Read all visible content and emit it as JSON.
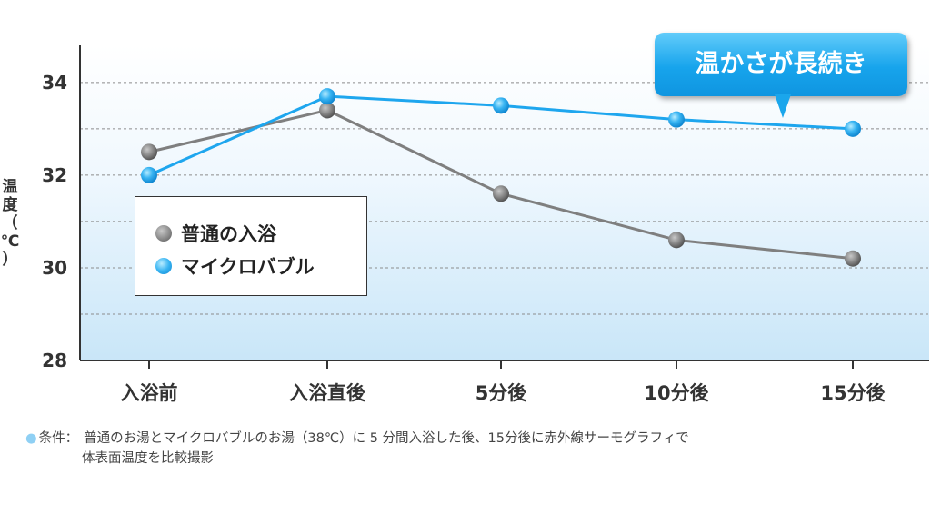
{
  "chart_data": {
    "type": "line",
    "categories": [
      "入浴前",
      "入浴直後",
      "5分後",
      "10分後",
      "15分後"
    ],
    "series": [
      {
        "name": "普通の入浴",
        "values": [
          32.5,
          33.4,
          31.6,
          30.6,
          30.2
        ],
        "color": "#7f7f7f"
      },
      {
        "name": "マイクロバブル",
        "values": [
          32.0,
          33.7,
          33.5,
          33.2,
          33.0
        ],
        "color": "#1ea6ee"
      }
    ],
    "ylabel": "温度（℃）",
    "ylim": [
      28,
      34.8
    ],
    "yticks": [
      28,
      30,
      32,
      34
    ],
    "grid": true,
    "legend_position": "center-left",
    "annotation": "温かさが長続き"
  },
  "ylabel_chars": [
    "温",
    "度",
    "（",
    "℃",
    "）"
  ],
  "note": {
    "bullet": "●",
    "label": "条件：",
    "line1": "普通のお湯とマイクロバブルのお湯（38℃）に 5 分間入浴した後、15分後に赤外線サーモグラフィで",
    "line2": "体表面温度を比較撮影"
  }
}
